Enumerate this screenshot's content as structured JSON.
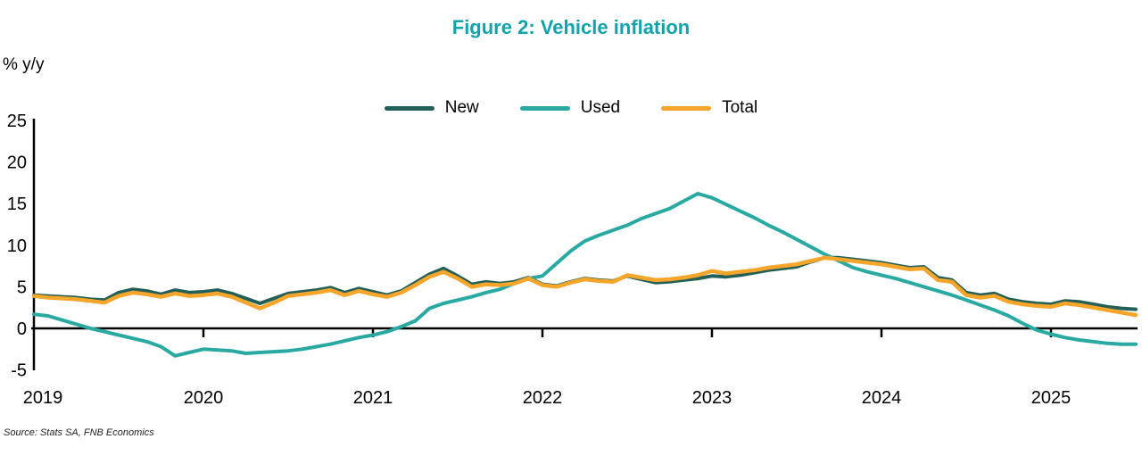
{
  "figure": {
    "title": "Figure 2: Vehicle inflation",
    "y_axis_label": "% y/y",
    "source": "Source: Stats SA, FNB Economics"
  },
  "colors": {
    "title": "#11a2ac",
    "axis": "#000000",
    "tick_text": "#000000"
  },
  "chart_data": {
    "type": "line",
    "title": "Figure 2: Vehicle inflation",
    "ylabel": "% y/y",
    "xlabel": "",
    "x_start": "2019-01",
    "x_freq": "monthly",
    "x_end": "2025-07",
    "ylim": [
      -5,
      25
    ],
    "yticks": [
      25,
      20,
      15,
      10,
      5,
      0,
      -5
    ],
    "x_year_labels": [
      "2019",
      "2020",
      "2021",
      "2022",
      "2023",
      "2024",
      "2025"
    ],
    "x_year_month_index": [
      0,
      12,
      24,
      36,
      48,
      60,
      72
    ],
    "grid": false,
    "legend_position": "top-center",
    "series": [
      {
        "name": "New",
        "color": "#215f58",
        "values": [
          4.0,
          3.9,
          3.8,
          3.7,
          3.5,
          3.4,
          4.3,
          4.7,
          4.5,
          4.1,
          4.6,
          4.3,
          4.4,
          4.6,
          4.2,
          3.6,
          3.0,
          3.6,
          4.2,
          4.4,
          4.6,
          4.9,
          4.3,
          4.8,
          4.4,
          4.0,
          4.5,
          5.5,
          6.5,
          7.2,
          6.3,
          5.3,
          5.6,
          5.4,
          5.6,
          6.1,
          5.3,
          5.1,
          5.6,
          6.0,
          5.8,
          5.7,
          6.3,
          5.9,
          5.5,
          5.6,
          5.8,
          6.0,
          6.3,
          6.2,
          6.4,
          6.7,
          7.0,
          7.2,
          7.4,
          8.0,
          8.5,
          8.5,
          8.3,
          8.1,
          7.9,
          7.6,
          7.3,
          7.4,
          6.1,
          5.8,
          4.3,
          4.0,
          4.2,
          3.5,
          3.2,
          3.0,
          2.9,
          3.3,
          3.2,
          2.9,
          2.6,
          2.4,
          2.3
        ]
      },
      {
        "name": "Used",
        "color": "#29a9a2",
        "values": [
          1.7,
          1.5,
          1.0,
          0.5,
          0.0,
          -0.4,
          -0.8,
          -1.2,
          -1.6,
          -2.2,
          -3.3,
          -2.9,
          -2.5,
          -2.6,
          -2.7,
          -3.0,
          -2.9,
          -2.8,
          -2.7,
          -2.5,
          -2.2,
          -1.9,
          -1.5,
          -1.1,
          -0.8,
          -0.4,
          0.2,
          0.9,
          2.4,
          3.0,
          3.4,
          3.8,
          4.3,
          4.7,
          5.4,
          6.0,
          6.3,
          7.8,
          9.3,
          10.5,
          11.2,
          11.8,
          12.4,
          13.2,
          13.8,
          14.4,
          15.3,
          16.2,
          15.7,
          14.9,
          14.1,
          13.3,
          12.4,
          11.6,
          10.7,
          9.8,
          8.9,
          8.1,
          7.3,
          6.8,
          6.4,
          6.0,
          5.5,
          5.0,
          4.5,
          4.0,
          3.4,
          2.8,
          2.2,
          1.5,
          0.6,
          -0.2,
          -0.7,
          -1.1,
          -1.4,
          -1.6,
          -1.8,
          -1.9,
          -1.9
        ]
      },
      {
        "name": "Total",
        "color": "#f6a52b",
        "values": [
          3.9,
          3.7,
          3.6,
          3.5,
          3.3,
          3.1,
          3.9,
          4.3,
          4.1,
          3.8,
          4.2,
          3.9,
          4.0,
          4.2,
          3.8,
          3.1,
          2.4,
          3.1,
          3.9,
          4.1,
          4.3,
          4.6,
          4.0,
          4.5,
          4.1,
          3.8,
          4.3,
          5.2,
          6.2,
          6.8,
          6.0,
          5.0,
          5.3,
          5.2,
          5.4,
          6.0,
          5.2,
          5.0,
          5.5,
          5.9,
          5.7,
          5.6,
          6.4,
          6.1,
          5.8,
          5.9,
          6.1,
          6.4,
          6.9,
          6.6,
          6.8,
          7.0,
          7.3,
          7.5,
          7.7,
          8.1,
          8.5,
          8.3,
          8.1,
          7.9,
          7.7,
          7.4,
          7.1,
          7.2,
          5.8,
          5.6,
          4.0,
          3.7,
          3.9,
          3.2,
          2.9,
          2.7,
          2.6,
          3.0,
          2.8,
          2.5,
          2.2,
          1.9,
          1.6
        ]
      }
    ]
  }
}
